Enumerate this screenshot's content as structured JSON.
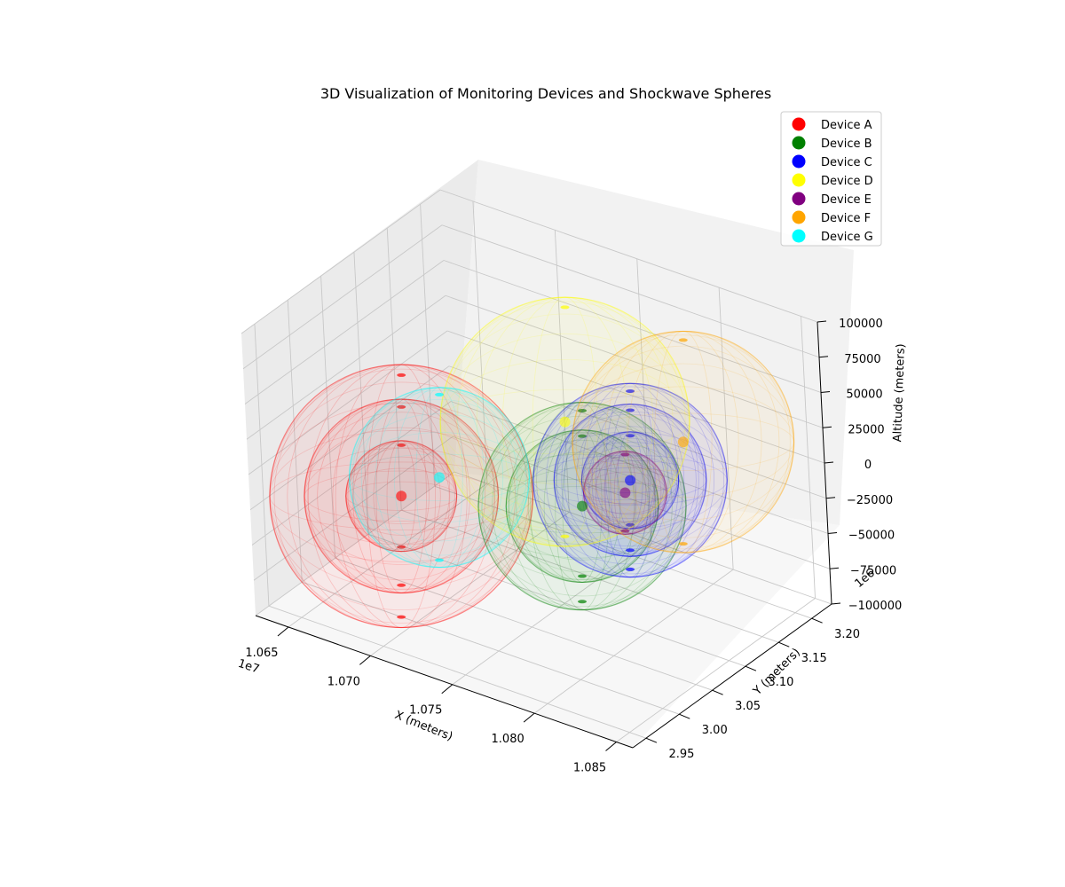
{
  "chart_data": {
    "type": "scatter",
    "projection": "3d",
    "title": "3D Visualization of Monitoring Devices and Shockwave Spheres",
    "xlabel": "X (meters)",
    "ylabel": "Y (meters)",
    "zlabel": "Altitude (meters)",
    "x_offset_label": "1e7",
    "y_offset_label": "1e6",
    "xlim": [
      10630000,
      10860000
    ],
    "ylim": [
      2930000,
      3230000
    ],
    "zlim": [
      -100000,
      100000
    ],
    "x_ticks": [
      {
        "value": 10650000,
        "label": "1.065"
      },
      {
        "value": 10700000,
        "label": "1.070"
      },
      {
        "value": 10750000,
        "label": "1.075"
      },
      {
        "value": 10800000,
        "label": "1.080"
      },
      {
        "value": 10850000,
        "label": "1.085"
      }
    ],
    "y_ticks": [
      {
        "value": 2950000,
        "label": "2.95"
      },
      {
        "value": 3000000,
        "label": "3.00"
      },
      {
        "value": 3050000,
        "label": "3.05"
      },
      {
        "value": 3100000,
        "label": "3.10"
      },
      {
        "value": 3150000,
        "label": "3.15"
      },
      {
        "value": 3200000,
        "label": "3.20"
      }
    ],
    "z_ticks": [
      {
        "value": -100000,
        "label": "−100000"
      },
      {
        "value": -75000,
        "label": "−75000"
      },
      {
        "value": -50000,
        "label": "−50000"
      },
      {
        "value": -25000,
        "label": "−25000"
      },
      {
        "value": 0,
        "label": "0"
      },
      {
        "value": 25000,
        "label": "25000"
      },
      {
        "value": 50000,
        "label": "50000"
      },
      {
        "value": 75000,
        "label": "75000"
      },
      {
        "value": 100000,
        "label": "100000"
      }
    ],
    "grid": true,
    "legend_position": "top-right",
    "series": [
      {
        "name": "Device A",
        "color": "#ff0000",
        "x": 10705000,
        "y": 2975000,
        "z": 0,
        "radii": [
          40000,
          70000,
          95000
        ]
      },
      {
        "name": "Device B",
        "color": "#008000",
        "x": 10785000,
        "y": 3050000,
        "z": 0,
        "radii": [
          55000,
          75000
        ]
      },
      {
        "name": "Device C",
        "color": "#0000ff",
        "x": 10790000,
        "y": 3110000,
        "z": 0,
        "radii": [
          35000,
          55000,
          70000
        ]
      },
      {
        "name": "Device D",
        "color": "#ffff00",
        "x": 10730000,
        "y": 3160000,
        "z": 0,
        "radii": [
          90000
        ]
      },
      {
        "name": "Device E",
        "color": "#800080",
        "x": 10795000,
        "y": 3090000,
        "z": 0,
        "radii": [
          30000
        ]
      },
      {
        "name": "Device F",
        "color": "#ffa500",
        "x": 10790000,
        "y": 3190000,
        "z": 0,
        "radii": [
          80000
        ]
      },
      {
        "name": "Device G",
        "color": "#00ffff",
        "x": 10710000,
        "y": 3020000,
        "z": 0,
        "radii": [
          65000
        ]
      }
    ]
  }
}
